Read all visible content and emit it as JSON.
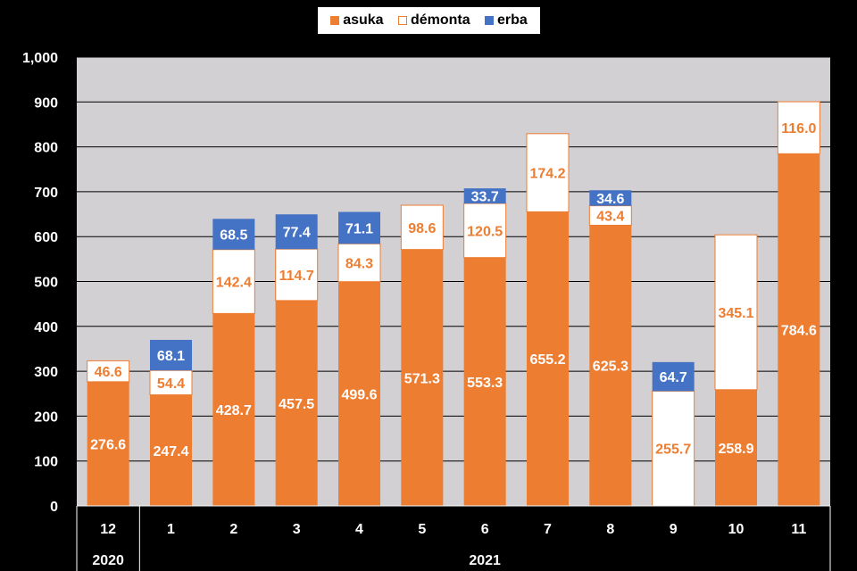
{
  "chart_data": {
    "type": "bar",
    "stacked": true,
    "categories": [
      "12",
      "1",
      "2",
      "3",
      "4",
      "5",
      "6",
      "7",
      "8",
      "9",
      "10",
      "11"
    ],
    "year_groups": [
      {
        "label": "2020",
        "from": 0,
        "to": 0
      },
      {
        "label": "2021",
        "from": 1,
        "to": 11
      }
    ],
    "series": [
      {
        "name": "asuka",
        "color": "#ED7D31",
        "values": [
          276.6,
          247.4,
          428.7,
          457.5,
          499.6,
          571.3,
          553.3,
          655.2,
          625.3,
          null,
          258.9,
          784.6
        ],
        "labels": [
          "276.6",
          "247.4",
          "428.7",
          "457.5",
          "499.6",
          "571.3",
          "553.3",
          "655.2",
          "625.3",
          "",
          "258.9",
          "784.6"
        ]
      },
      {
        "name": "démonta",
        "color": "#FFFFFF",
        "values": [
          46.6,
          54.4,
          142.4,
          114.7,
          84.3,
          98.6,
          120.5,
          174.2,
          43.4,
          255.7,
          345.1,
          116.0
        ],
        "labels": [
          "46.6",
          "54.4",
          "142.4",
          "114.7",
          "84.3",
          "98.6",
          "120.5",
          "174.2",
          "43.4",
          "255.7",
          "345.1",
          "116.0"
        ]
      },
      {
        "name": "erba",
        "color": "#4472C4",
        "values": [
          null,
          68.1,
          68.5,
          77.4,
          71.1,
          null,
          33.7,
          null,
          34.6,
          64.7,
          null,
          null
        ],
        "labels": [
          "",
          "68.1",
          "68.5",
          "77.4",
          "71.1",
          "",
          "33.7",
          "",
          "34.6",
          "64.7",
          "",
          ""
        ]
      }
    ],
    "ylim": [
      0,
      1000
    ],
    "yticks": [
      "0",
      "100",
      "200",
      "300",
      "400",
      "500",
      "600",
      "700",
      "800",
      "900",
      "1,000"
    ],
    "grid": true,
    "legend_position": "top-center",
    "plot_background": "#D3D0D3",
    "title": "",
    "xlabel": "",
    "ylabel": ""
  }
}
